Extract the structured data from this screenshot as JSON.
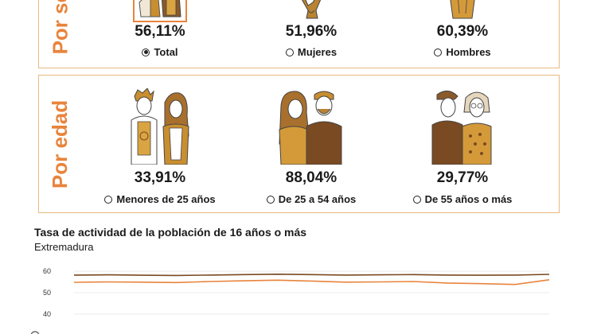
{
  "sexo": {
    "label": "Por sexo",
    "items": [
      {
        "pct": "56,11%",
        "label": "Total",
        "selected": true
      },
      {
        "pct": "51,96%",
        "label": "Mujeres",
        "selected": false
      },
      {
        "pct": "60,39%",
        "label": "Hombres",
        "selected": false
      }
    ]
  },
  "edad": {
    "label": "Por edad",
    "items": [
      {
        "pct": "33,91%",
        "label": "Menores de 25 años",
        "selected": false
      },
      {
        "pct": "88,04%",
        "label": "De 25 a 54 años",
        "selected": false
      },
      {
        "pct": "29,77%",
        "label": "De 55 años o más",
        "selected": false
      }
    ]
  },
  "colors": {
    "accent": "#e8843c",
    "border": "#e8b880",
    "ochre": "#c98e2f",
    "brown": "#7a4a22"
  },
  "chart_data": {
    "type": "line",
    "title": "Tasa de actividad de la población de 16 años o más",
    "subtitle": "Extremadura",
    "yticks": [
      40,
      50,
      60
    ],
    "ylim": [
      40,
      60
    ],
    "series": [
      {
        "color": "#7a4a22",
        "values": [
          58.2,
          58.3,
          58.1,
          58.0,
          58.2,
          58.4,
          58.6,
          58.4,
          58.2,
          58.3,
          58.4,
          58.2,
          58.1,
          58.2,
          58.5
        ]
      },
      {
        "color": "#e8843c",
        "values": [
          54.8,
          55.0,
          54.9,
          54.7,
          55.2,
          55.5,
          55.8,
          55.4,
          54.9,
          55.0,
          55.2,
          54.5,
          54.2,
          53.8,
          56.0
        ]
      }
    ]
  }
}
